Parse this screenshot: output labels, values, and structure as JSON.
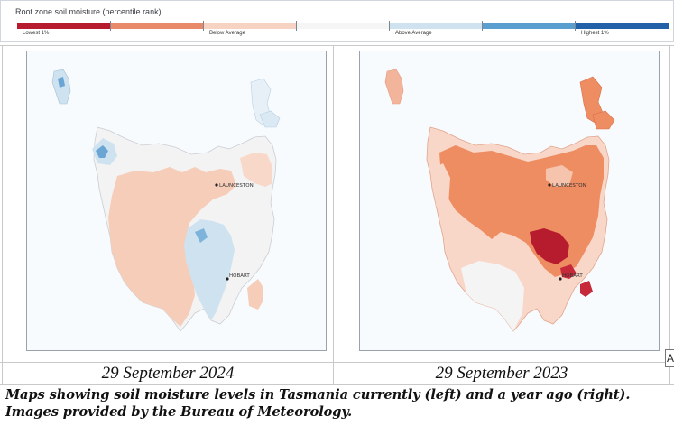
{
  "legend": {
    "title": "Root zone soil moisture (percentile rank)",
    "colors": [
      "#b71c2e",
      "#e8896a",
      "#f7d3c3",
      "#f5f5f5",
      "#cfe2f0",
      "#5a9fd0",
      "#2260a8"
    ],
    "labels": {
      "lowest": "Lowest 1%",
      "below": "Below Average",
      "above": "Above Average",
      "highest": "Highest 1%"
    }
  },
  "maps": {
    "left": {
      "date": "29 September 2024",
      "city_north": "LAUNCESTON",
      "city_south": "HOBART"
    },
    "right": {
      "date": "29 September 2023",
      "city_north": "LAUNCESTON",
      "city_south": "HOBART"
    }
  },
  "caption": "Maps showing soil moisture levels in Tasmania currently (left) and a year ago (right). Images provided by the Bureau of Meteorology.",
  "edge_glyph": "A"
}
